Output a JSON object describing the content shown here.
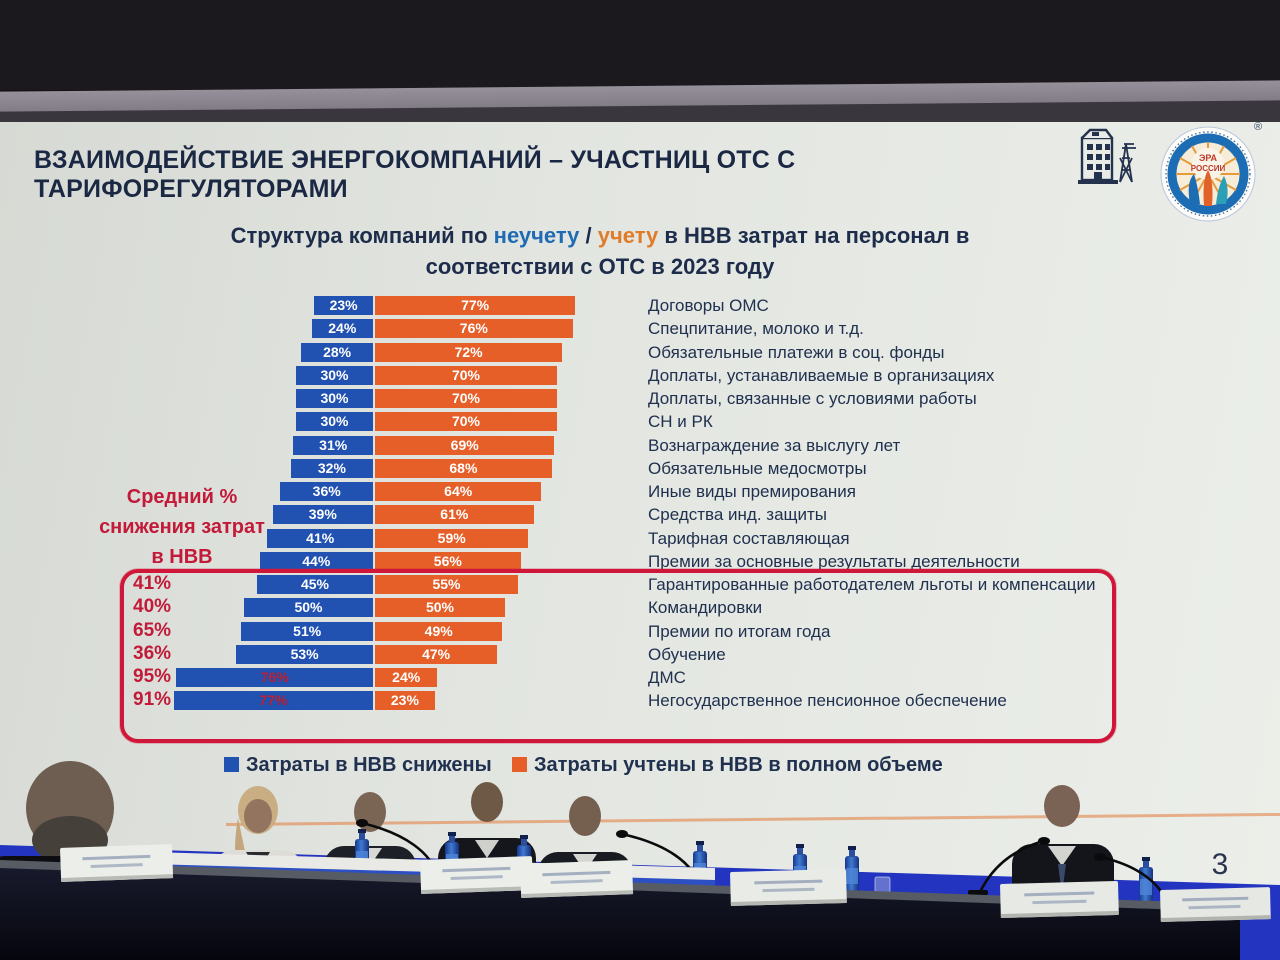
{
  "slide": {
    "title": "ВЗАИМОДЕЙСТВИЕ ЭНЕРГОКОМПАНИЙ – УЧАСТНИЦ ОТС С ТАРИФОРЕГУЛЯТОРАМИ",
    "page_number": "3",
    "subtitle": {
      "part1": "Структура компаний по ",
      "highlight_blue": "неучету",
      "separator": " / ",
      "highlight_orange": "учету",
      "part2": " в НВВ затрат на персонал в",
      "line2": "соответствии с ОТС в 2023 году"
    },
    "annotation": {
      "line1": "Средний %",
      "line2": "снижения затрат",
      "line3": "в НВВ"
    },
    "legend": [
      {
        "label": "Затраты в НВВ снижены",
        "color": "#2152b2"
      },
      {
        "label": "Затраты учтены в НВВ в полном объеме",
        "color": "#e65f28"
      }
    ],
    "logo": {
      "center_line1": "ЭРА",
      "center_line2": "РОССИИ",
      "trademark": "®"
    }
  },
  "chart_data": {
    "type": "bar",
    "orientation": "horizontal",
    "stacked": true,
    "unit": "%",
    "categories": [
      "Договоры ОМС",
      "Спецпитание, молоко и т.д.",
      "Обязательные платежи в соц. фонды",
      "Доплаты, устанавливаемые в организациях",
      "Доплаты, связанные с условиями работы",
      "СН и РК",
      "Вознаграждение за выслугу лет",
      "Обязательные медосмотры",
      "Иные виды премирования",
      "Средства инд. защиты",
      "Тарифная составляющая",
      "Премии за основные результаты деятельности",
      "Гарантированные работодателем льготы и компенсации",
      "Командировки",
      "Премии по итогам года",
      "Обучение",
      "ДМС",
      "Негосударственное пенсионное обеспечение"
    ],
    "series": [
      {
        "name": "Затраты в НВВ снижены",
        "color": "#2152b2",
        "values": [
          23,
          24,
          28,
          30,
          30,
          30,
          31,
          32,
          36,
          39,
          41,
          44,
          45,
          50,
          51,
          53,
          76,
          77
        ]
      },
      {
        "name": "Затраты учтены в НВВ в полном объеме",
        "color": "#e65f28",
        "values": [
          77,
          76,
          72,
          70,
          70,
          70,
          69,
          68,
          64,
          61,
          59,
          56,
          55,
          50,
          49,
          47,
          24,
          23
        ]
      }
    ],
    "avg_reduction": {
      "label": "Средний % снижения затрат в НВВ",
      "applies_to_last_rows": 6,
      "values": [
        41,
        40,
        65,
        36,
        95,
        91
      ]
    },
    "highlight_box_rows": [
      12,
      13,
      14,
      15,
      16,
      17
    ],
    "blue_value_label_red_rows": [
      16,
      17
    ],
    "xlim": [
      0,
      100
    ],
    "legend_position": "bottom",
    "grid": false
  },
  "colors": {
    "slide_bg": "#e2e5e0",
    "title_text": "#1b2844",
    "red_accent": "#c21a38",
    "highlight_box_border": "#d0173a"
  },
  "scene": {
    "description": "Photo of conference panel: six speakers at a dark table with name cards, blue water bottles, glasses and gooseneck microphones below the projected slide",
    "people_count": 6
  }
}
